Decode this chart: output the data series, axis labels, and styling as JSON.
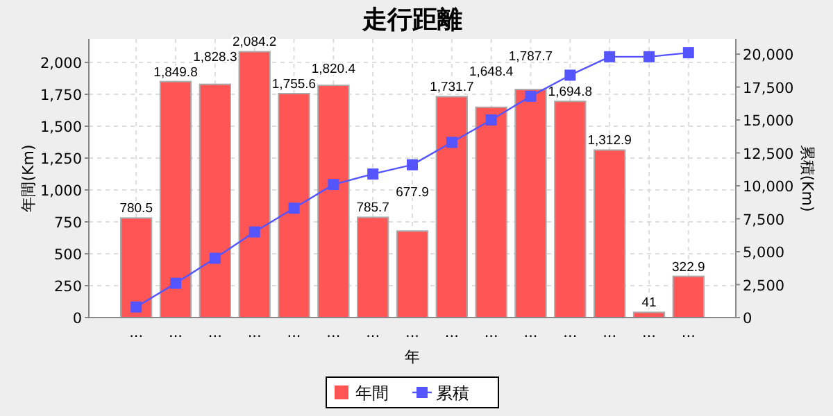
{
  "chart_data": {
    "type": "bar",
    "title": "走行距離",
    "xlabel": "年",
    "ylabel": "年間(Km)",
    "y2label": "累積(Km)",
    "categories": [
      "...",
      "...",
      "...",
      "...",
      "...",
      "...",
      "...",
      "...",
      "...",
      "...",
      "...",
      "...",
      "...",
      "...",
      "..."
    ],
    "series": [
      {
        "name": "年間",
        "color": "#ff5555",
        "values": [
          780.5,
          1849.8,
          1828.3,
          2084.2,
          1755.6,
          1820.4,
          785.7,
          677.9,
          1731.7,
          1648.4,
          1787.7,
          1694.8,
          1312.9,
          41,
          322.9
        ],
        "value_labels": [
          "780.5",
          "1,849.8",
          "1,828.3",
          "2,084.2",
          "1,755.6",
          "1,820.4",
          "785.7",
          "677.9",
          "1,731.7",
          "1,648.4",
          "1,787.7",
          "1,694.8",
          "1,312.9",
          "41",
          "322.9"
        ]
      },
      {
        "name": "累積",
        "type": "line",
        "axis": "y2",
        "color": "#5555ff",
        "marker": "square",
        "values": [
          800,
          2600,
          4500,
          6500,
          8300,
          10100,
          10900,
          11600,
          13300,
          15000,
          16800,
          18400,
          19800,
          19800,
          20100
        ]
      }
    ],
    "ylim": [
      0,
      2185
    ],
    "yticks": [
      0,
      250,
      500,
      750,
      {
        "value": 1000,
        "label": "1,000"
      },
      {
        "value": 1250,
        "label": "1,250"
      },
      {
        "value": 1500,
        "label": "1,500"
      },
      {
        "value": 1750,
        "label": "1,750"
      },
      {
        "value": 2000,
        "label": "2,000"
      }
    ],
    "y2lim": [
      0,
      21160
    ],
    "y2ticks": [
      0,
      {
        "value": 2500,
        "label": "2,500"
      },
      {
        "value": 5000,
        "label": "5,000"
      },
      {
        "value": 7500,
        "label": "7,500"
      },
      {
        "value": 10000,
        "label": "10,000"
      },
      {
        "value": 12500,
        "label": "12,500"
      },
      {
        "value": 15000,
        "label": "15,000"
      },
      {
        "value": 17500,
        "label": "17,500"
      },
      {
        "value": 20000,
        "label": "20,000"
      }
    ],
    "grid": true,
    "legend": "bottom"
  }
}
